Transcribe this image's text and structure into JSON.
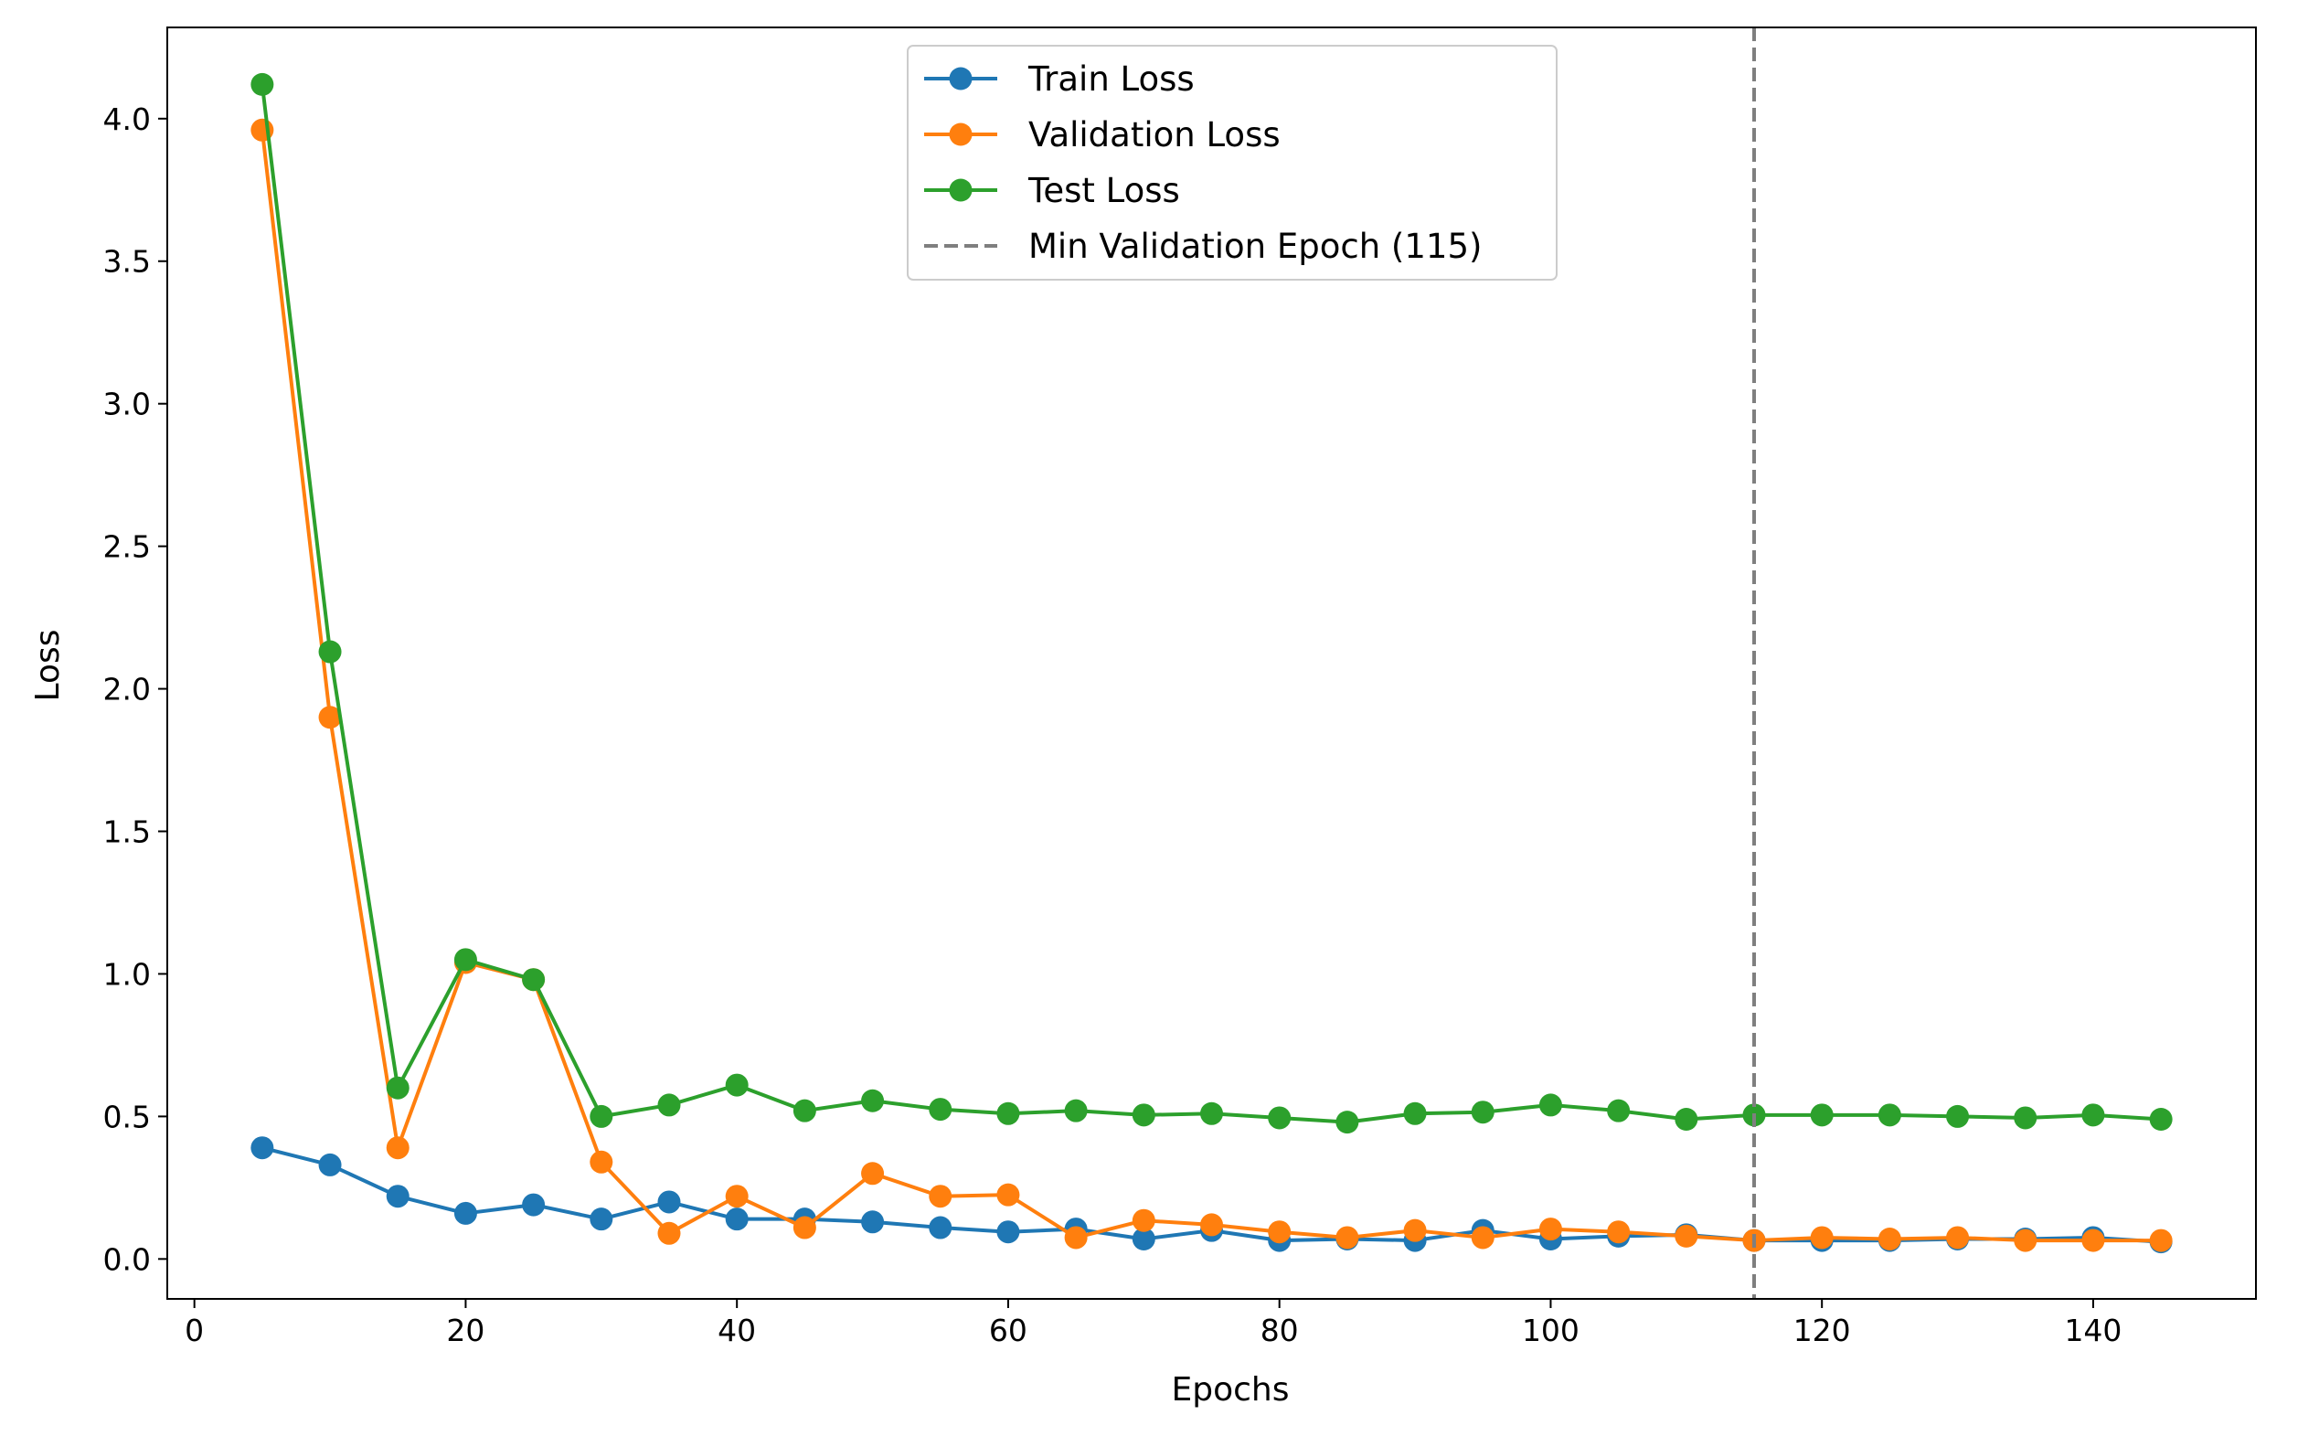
{
  "chart_data": {
    "type": "line",
    "title": "",
    "xlabel": "Epochs",
    "ylabel": "Loss",
    "xlim": [
      -2,
      152
    ],
    "ylim": [
      -0.14,
      4.32
    ],
    "xticks": [
      0,
      20,
      40,
      60,
      80,
      100,
      120,
      140
    ],
    "yticks": [
      0.0,
      0.5,
      1.0,
      1.5,
      2.0,
      2.5,
      3.0,
      3.5,
      4.0
    ],
    "x": [
      5,
      10,
      15,
      20,
      25,
      30,
      35,
      40,
      45,
      50,
      55,
      60,
      65,
      70,
      75,
      80,
      85,
      90,
      95,
      100,
      105,
      110,
      115,
      120,
      125,
      130,
      135,
      140,
      145
    ],
    "series": [
      {
        "name": "Train Loss",
        "color": "#1f77b4",
        "values": [
          0.39,
          0.33,
          0.22,
          0.16,
          0.19,
          0.14,
          0.2,
          0.14,
          0.14,
          0.13,
          0.11,
          0.095,
          0.105,
          0.07,
          0.1,
          0.065,
          0.07,
          0.065,
          0.1,
          0.07,
          0.08,
          0.085,
          0.065,
          0.065,
          0.065,
          0.07,
          0.07,
          0.075,
          0.06
        ]
      },
      {
        "name": "Validation Loss",
        "color": "#ff7f0e",
        "values": [
          3.96,
          1.9,
          0.39,
          1.04,
          0.98,
          0.34,
          0.09,
          0.22,
          0.11,
          0.3,
          0.22,
          0.225,
          0.075,
          0.135,
          0.12,
          0.095,
          0.075,
          0.1,
          0.075,
          0.105,
          0.095,
          0.08,
          0.065,
          0.075,
          0.07,
          0.075,
          0.065,
          0.065,
          0.065
        ]
      },
      {
        "name": "Test Loss",
        "color": "#2ca02c",
        "values": [
          4.12,
          2.13,
          0.6,
          1.05,
          0.98,
          0.5,
          0.54,
          0.61,
          0.52,
          0.555,
          0.525,
          0.51,
          0.52,
          0.505,
          0.51,
          0.495,
          0.48,
          0.51,
          0.515,
          0.54,
          0.52,
          0.49,
          0.505,
          0.505,
          0.505,
          0.5,
          0.495,
          0.505,
          0.49
        ]
      }
    ],
    "vline": {
      "x": 115,
      "name": "Min Validation Epoch (115)",
      "color": "#7f7f7f",
      "style": "dashed"
    },
    "legend": "upper-center",
    "grid": false
  }
}
